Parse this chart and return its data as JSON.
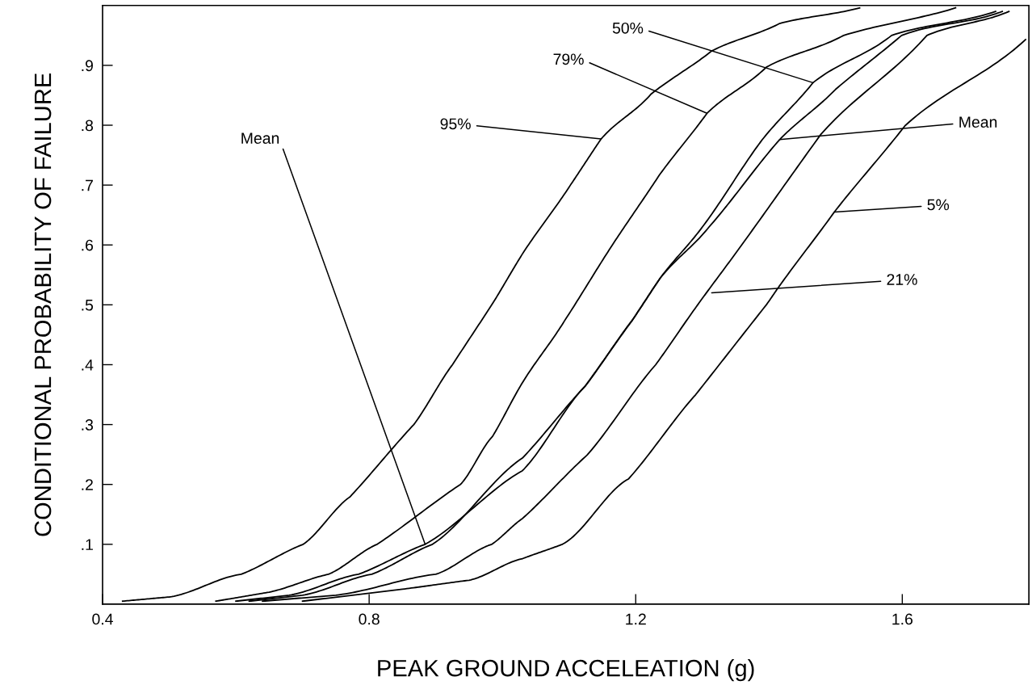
{
  "chart_data": {
    "type": "line",
    "xlabel": "PEAK GROUND ACCELEATION (g)",
    "ylabel": "CONDITIONAL PROBABILITY OF FAILURE",
    "xlim": [
      0.4,
      1.79
    ],
    "ylim": [
      0.0,
      1.0
    ],
    "xticks": [
      0.4,
      0.8,
      1.2,
      1.6
    ],
    "yticks": [
      {
        "value": 0.1,
        "label": ".1"
      },
      {
        "value": 0.2,
        "label": ".2"
      },
      {
        "value": 0.3,
        "label": ".3"
      },
      {
        "value": 0.4,
        "label": ".4"
      },
      {
        "value": 0.5,
        "label": ".5"
      },
      {
        "value": 0.6,
        "label": ".6"
      },
      {
        "value": 0.7,
        "label": ".7"
      },
      {
        "value": 0.8,
        "label": ".8"
      },
      {
        "value": 0.9,
        "label": ".9"
      }
    ],
    "grid": false,
    "legend": false,
    "marker": "none",
    "line_style": "solid",
    "series": [
      {
        "color": "#000000",
        "x": [
          0.43,
          0.5,
          0.608,
          0.701,
          0.771,
          0.867,
          0.925,
          0.984,
          1.03,
          1.102,
          1.148,
          1.223,
          1.314,
          1.416,
          1.536
        ],
        "values": [
          0.005,
          0.012,
          0.05,
          0.1,
          0.179,
          0.3,
          0.4,
          0.5,
          0.585,
          0.7,
          0.777,
          0.852,
          0.924,
          0.97,
          0.996
        ]
      },
      {
        "color": "#000000",
        "x": [
          0.57,
          0.65,
          0.739,
          0.812,
          0.937,
          0.985,
          1.03,
          1.093,
          1.165,
          1.235,
          1.307,
          1.396,
          1.512,
          1.68
        ],
        "values": [
          0.005,
          0.02,
          0.05,
          0.1,
          0.2,
          0.28,
          0.37,
          0.473,
          0.6,
          0.716,
          0.82,
          0.897,
          0.95,
          0.996
        ]
      },
      {
        "color": "#000000",
        "x": [
          0.62,
          0.7,
          0.804,
          0.895,
          1.03,
          1.124,
          1.194,
          1.237,
          1.3,
          1.39,
          1.466,
          1.584,
          1.74
        ],
        "values": [
          0.005,
          0.015,
          0.05,
          0.1,
          0.244,
          0.364,
          0.473,
          0.545,
          0.63,
          0.776,
          0.871,
          0.95,
          0.99
        ]
      },
      {
        "color": "#000000",
        "x": [
          0.6,
          0.68,
          0.784,
          0.884,
          1.03,
          1.124,
          1.194,
          1.237,
          1.31,
          1.416,
          1.5,
          1.599,
          1.75
        ],
        "values": [
          0.005,
          0.015,
          0.05,
          0.1,
          0.223,
          0.364,
          0.473,
          0.545,
          0.63,
          0.776,
          0.86,
          0.95,
          0.99
        ]
      },
      {
        "color": "#000000",
        "x": [
          0.64,
          0.75,
          0.9,
          0.984,
          1.03,
          1.127,
          1.23,
          1.293,
          1.359,
          1.478,
          1.637,
          1.76
        ],
        "values": [
          0.005,
          0.015,
          0.05,
          0.1,
          0.143,
          0.249,
          0.4,
          0.5,
          0.6,
          0.785,
          0.95,
          0.99
        ]
      },
      {
        "color": "#000000",
        "x": [
          0.7,
          0.85,
          0.95,
          1.03,
          1.09,
          1.189,
          1.29,
          1.396,
          1.416,
          1.498,
          1.604,
          1.785
        ],
        "values": [
          0.005,
          0.025,
          0.04,
          0.076,
          0.1,
          0.209,
          0.35,
          0.5,
          0.532,
          0.655,
          0.799,
          0.943
        ]
      }
    ],
    "annotations": [
      {
        "text": "95%",
        "x": 1.148,
        "y": 0.777
      },
      {
        "text": "79%",
        "x": 1.307,
        "y": 0.82
      },
      {
        "text": "50%",
        "x": 1.466,
        "y": 0.871
      },
      {
        "text": "Mean",
        "x": 1.416,
        "y": 0.776
      },
      {
        "text": "5%",
        "x": 1.498,
        "y": 0.655
      },
      {
        "text": "21%",
        "x": 1.314,
        "y": 0.52
      },
      {
        "text": "Mean",
        "x": 0.884,
        "y": 0.1
      }
    ]
  }
}
